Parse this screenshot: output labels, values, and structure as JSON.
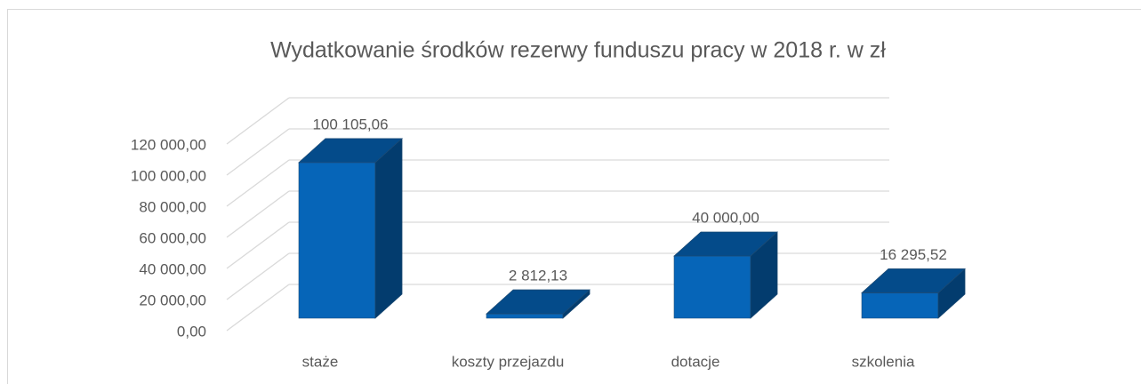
{
  "chart_data": {
    "type": "bar3d",
    "title": "Wydatkowanie środków rezerwy funduszu pracy w 2018 r. w zł",
    "categories": [
      "staże",
      "koszty przejazdu",
      "dotacje",
      "szkolenia"
    ],
    "values": [
      100105.06,
      2812.13,
      40000,
      16295.52
    ],
    "value_labels": [
      "100 105,06",
      "2 812,13",
      "40 000,00",
      "16 295,52"
    ],
    "color": "#0665b8",
    "ylim": [
      0,
      120000
    ],
    "yticks": [
      {
        "value": 0,
        "label": "0,00"
      },
      {
        "value": 20000,
        "label": "20 000,00"
      },
      {
        "value": 40000,
        "label": "40 000,00"
      },
      {
        "value": 60000,
        "label": "60 000,00"
      },
      {
        "value": 80000,
        "label": "80 000,00"
      },
      {
        "value": 100000,
        "label": "100 000,00"
      },
      {
        "value": 120000,
        "label": "120 000,00"
      }
    ],
    "grid": true
  }
}
